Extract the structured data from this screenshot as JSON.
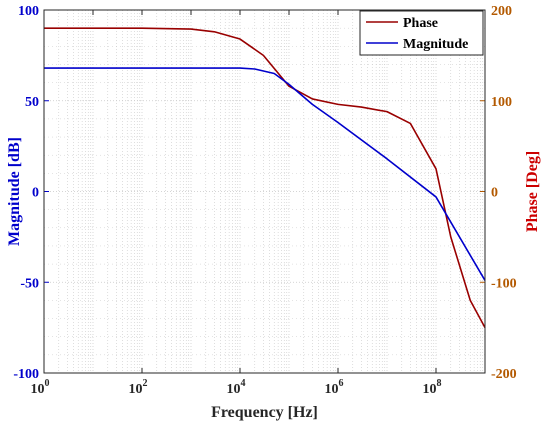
{
  "chart_data": {
    "type": "line",
    "title": "",
    "xlabel": "Frequency [Hz]",
    "xscale": "log",
    "xlim": [
      1,
      1000000000
    ],
    "x_tick_labels": [
      {
        "base": "10",
        "exp": "0"
      },
      {
        "base": "10",
        "exp": "2"
      },
      {
        "base": "10",
        "exp": "4"
      },
      {
        "base": "10",
        "exp": "6"
      },
      {
        "base": "10",
        "exp": "8"
      }
    ],
    "ylabel_left": "Magnitude [dB]",
    "ylim_left": [
      -100,
      100
    ],
    "y_tick_labels_left": [
      "100",
      "50",
      "0",
      "-50",
      "-100"
    ],
    "ylabel_right": "Phase [Deg]",
    "ylim_right": [
      -200,
      200
    ],
    "y_tick_labels_right": [
      "200",
      "100",
      "0",
      "-100",
      "-200"
    ],
    "grid": true,
    "legend_position": "top-right",
    "colors": {
      "magnitude": "#0000cc",
      "phase": "#990000",
      "left_axis": "#0000cc",
      "right_axis": "#b35900",
      "right_axis_title": "#cc0000",
      "grid": "#c8c8c8"
    },
    "series": [
      {
        "name": "Phase",
        "axis": "right",
        "x": [
          1,
          10,
          100,
          1000,
          3000,
          10000,
          30000,
          100000,
          300000,
          1000000,
          3000000,
          10000000,
          30000000,
          100000000,
          200000000,
          500000000,
          1000000000
        ],
        "y": [
          180,
          180,
          180,
          179,
          176,
          168,
          150,
          116,
          102,
          96,
          93,
          88,
          75,
          25,
          -50,
          -120,
          -150
        ]
      },
      {
        "name": "Magnitude",
        "axis": "left",
        "x": [
          1,
          10,
          100,
          1000,
          10000,
          20000,
          50000,
          100000,
          300000,
          1000000,
          10000000,
          100000000,
          1000000000
        ],
        "y": [
          68,
          68,
          68,
          68,
          68,
          67.5,
          65,
          59,
          48,
          38,
          18,
          -3,
          -49
        ]
      }
    ]
  }
}
